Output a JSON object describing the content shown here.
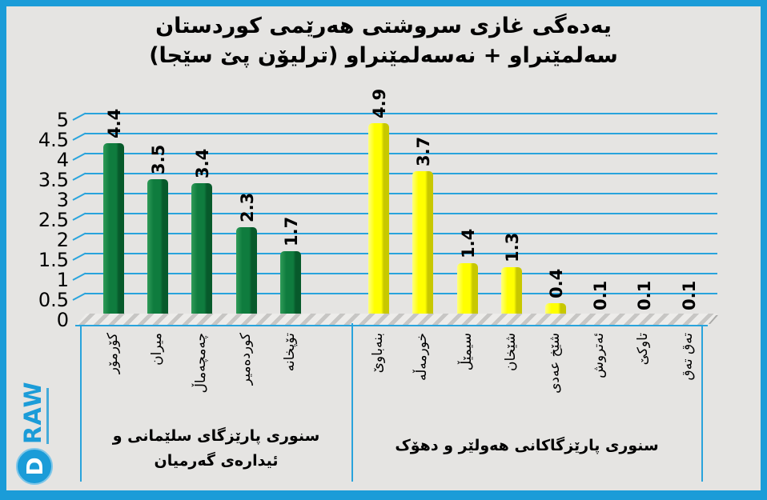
{
  "chart_data": {
    "type": "bar",
    "title": "یەدەگی غازی سروشتی هەرێمی کوردستان",
    "subtitle": "سەلمێنراو + نەسەلمێنراو (ترلیۆن پێ سێجا)",
    "unit_note": "ترلیۆن پێ سێجا",
    "ylim": [
      0,
      5
    ],
    "ytick_step": 0.5,
    "yticks": [
      "5",
      "4.5",
      "4",
      "3.5",
      "3",
      "2.5",
      "2",
      "1.5",
      "1",
      "0.5",
      "0"
    ],
    "grid": true,
    "legend": "none",
    "groups": [
      {
        "label": "سنوری پارێزگای سلێمانی و ئیدارەی گەرمیان",
        "label_lines": [
          "سنوری پارێزگای سلێمانی و",
          "ئیدارەی گەرمیان"
        ],
        "color": "#0f7c3e",
        "color_light": "#2f9b58",
        "color_dark": "#075a2b",
        "bars": [
          {
            "category": "کۆرمۆر",
            "value": 4.4
          },
          {
            "category": "میران",
            "value": 3.5
          },
          {
            "category": "چەمچەماڵ",
            "value": 3.4
          },
          {
            "category": "کوردەمیر",
            "value": 2.3
          },
          {
            "category": "تۆپخانە",
            "value": 1.7
          }
        ]
      },
      {
        "label": "سنوری پارێزگاکانی هەولێر و دهۆک",
        "label_lines": [
          "سنوری پارێزگاکانی هەولێر و دهۆک"
        ],
        "color": "#ffff00",
        "color_light": "#ffff80",
        "color_dark": "#c8c800",
        "bars": [
          {
            "category": "بنەباوێ",
            "value": 4.9
          },
          {
            "category": "خورمەڵە",
            "value": 3.7
          },
          {
            "category": "سیمێڵ",
            "value": 1.4
          },
          {
            "category": "شێخان",
            "value": 1.3
          },
          {
            "category": "شێخ عەدی",
            "value": 0.4
          },
          {
            "category": "ئەتروش",
            "value": 0.1
          },
          {
            "category": "تاوکێ",
            "value": 0.1
          },
          {
            "category": "تەق تەق",
            "value": 0.1
          }
        ]
      }
    ]
  },
  "colors": {
    "frame": "#1b9cd8",
    "grid": "#29a3dc",
    "background": "#e5e4e2",
    "green_bar": "#0f7c3e",
    "yellow_bar": "#ffff00",
    "text": "#000000",
    "logo_blue": "#1b9cd8"
  },
  "logo": {
    "d_letter": "D",
    "text": "RAW"
  }
}
